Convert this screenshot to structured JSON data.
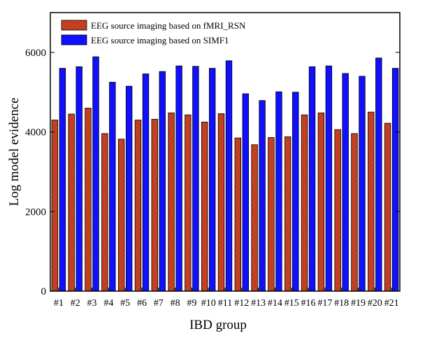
{
  "chart_data": {
    "type": "bar",
    "title": "",
    "xlabel": "IBD group",
    "ylabel": "Log model evidence",
    "ylim": [
      0,
      7000
    ],
    "yticks": [
      0,
      2000,
      4000,
      6000
    ],
    "ytick_labels": [
      "0",
      "2000",
      "4000",
      "6000"
    ],
    "categories": [
      "#1",
      "#2",
      "#3",
      "#4",
      "#5",
      "#6",
      "#7",
      "#8",
      "#9",
      "#10",
      "#11",
      "#12",
      "#13",
      "#14",
      "#15",
      "#16",
      "#17",
      "#18",
      "#19",
      "#20",
      "#21"
    ],
    "series": [
      {
        "name": "EEG source imaging based on fMRI_RSN",
        "fill": "#e8281e",
        "hatch": "#2e9e2e",
        "values": [
          4300,
          4450,
          4600,
          3960,
          3820,
          4300,
          4320,
          4480,
          4430,
          4250,
          4460,
          3850,
          3680,
          3860,
          3880,
          4430,
          4480,
          4060,
          3960,
          4500,
          4220
        ]
      },
      {
        "name": "EEG source imaging based on SIMF1",
        "fill": "#1010ff",
        "values": [
          5600,
          5640,
          5890,
          5250,
          5150,
          5460,
          5520,
          5660,
          5650,
          5600,
          5790,
          4960,
          4790,
          5010,
          5000,
          5640,
          5660,
          5470,
          5400,
          5860,
          5600
        ]
      }
    ],
    "legend_position": "top-left"
  }
}
